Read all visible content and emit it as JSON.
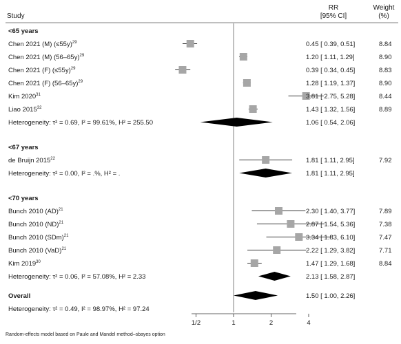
{
  "header": {
    "study": "Study",
    "rr": "RR",
    "ci": "[95% CI]",
    "weight": "Weight",
    "weight_unit": "(%)"
  },
  "footnote": "Random-effects model based on Paule and Mandel method–sbayes option",
  "chart_data": {
    "type": "forest",
    "scale": "log",
    "null_value": 1,
    "x_ticks": [
      "1/2",
      "1",
      "2",
      "4"
    ],
    "x_tick_values": [
      0.5,
      1,
      2,
      4
    ],
    "groups": [
      {
        "label": "<65 years",
        "studies": [
          {
            "name": "Chen 2021 (M) (≤55y)",
            "ref": "29",
            "rr": 0.45,
            "lo": 0.39,
            "hi": 0.51,
            "text": "0.45 [ 0.39, 0.51]",
            "weight": "8.84"
          },
          {
            "name": "Chen 2021 (M) (56–65y)",
            "ref": "29",
            "rr": 1.2,
            "lo": 1.11,
            "hi": 1.29,
            "text": "1.20 [ 1.11, 1.29]",
            "weight": "8.90"
          },
          {
            "name": "Chen 2021 (F) (≤55y)",
            "ref": "29",
            "rr": 0.39,
            "lo": 0.34,
            "hi": 0.45,
            "text": "0.39 [ 0.34, 0.45]",
            "weight": "8.83"
          },
          {
            "name": "Chen 2021 (F) (56–65y)",
            "ref": "29",
            "rr": 1.28,
            "lo": 1.19,
            "hi": 1.37,
            "text": "1.28 [ 1.19, 1.37]",
            "weight": "8.90"
          },
          {
            "name": "Kim 2020",
            "ref": "31",
            "rr": 3.81,
            "lo": 2.75,
            "hi": 5.28,
            "text": "3.81 [ 2.75, 5.28]",
            "weight": "8.44"
          },
          {
            "name": "Liao 2015",
            "ref": "32",
            "rr": 1.43,
            "lo": 1.32,
            "hi": 1.56,
            "text": "1.43 [ 1.32, 1.56]",
            "weight": "8.89"
          }
        ],
        "summary": {
          "label": "Heterogeneity: τ² = 0.69, I² = 99.61%, H² = 255.50",
          "rr": 1.06,
          "lo": 0.54,
          "hi": 2.06,
          "text": "1.06 [ 0.54, 2.06]"
        }
      },
      {
        "label": "<67 years",
        "studies": [
          {
            "name": "de Bruijn 2015",
            "ref": "22",
            "rr": 1.81,
            "lo": 1.11,
            "hi": 2.95,
            "text": "1.81 [ 1.11, 2.95]",
            "weight": "7.92"
          }
        ],
        "summary": {
          "label": "Heterogeneity: τ² = 0.00, I² = .%, H² = .",
          "rr": 1.81,
          "lo": 1.11,
          "hi": 2.95,
          "text": "1.81 [ 1.11, 2.95]"
        }
      },
      {
        "label": "<70 years",
        "studies": [
          {
            "name": "Bunch 2010 (AD)",
            "ref": "21",
            "rr": 2.3,
            "lo": 1.4,
            "hi": 3.77,
            "text": "2.30 [ 1.40, 3.77]",
            "weight": "7.89"
          },
          {
            "name": "Bunch 2010 (ND)",
            "ref": "21",
            "rr": 2.87,
            "lo": 1.54,
            "hi": 5.36,
            "text": "2.87 [ 1.54, 5.36]",
            "weight": "7.38"
          },
          {
            "name": "Bunch 2010 (SDm)",
            "ref": "21",
            "rr": 3.34,
            "lo": 1.83,
            "hi": 6.1,
            "text": "3.34 [ 1.83, 6.10]",
            "weight": "7.47"
          },
          {
            "name": "Bunch 2010 (VaD)",
            "ref": "21",
            "rr": 2.22,
            "lo": 1.29,
            "hi": 3.82,
            "text": "2.22 [ 1.29, 3.82]",
            "weight": "7.71"
          },
          {
            "name": "Kim 2019",
            "ref": "30",
            "rr": 1.47,
            "lo": 1.29,
            "hi": 1.68,
            "text": "1.47 [ 1.29, 1.68]",
            "weight": "8.84"
          }
        ],
        "summary": {
          "label": "Heterogeneity: τ² = 0.06, I² = 57.08%, H² = 2.33",
          "rr": 2.13,
          "lo": 1.58,
          "hi": 2.87,
          "text": "2.13 [ 1.58, 2.87]"
        }
      }
    ],
    "overall": {
      "label": "Overall",
      "heterogeneity": "Heterogeneity: τ² = 0.49, I² = 98.97%, H² = 97.24",
      "rr": 1.5,
      "lo": 1.0,
      "hi": 2.26,
      "text": "1.50 [ 1.00, 2.26]"
    },
    "colors": {
      "marker": "#a6a6a6",
      "diamond": "#000000",
      "line": "#333333",
      "null_line": "#808080"
    }
  }
}
